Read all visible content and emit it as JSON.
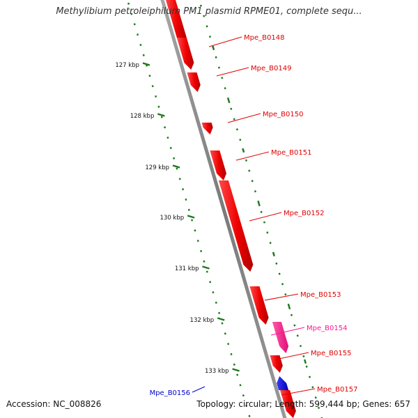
{
  "title": "Methylibium petroleiphilum PM1 plasmid RPME01, complete sequ...",
  "footer": {
    "accession": "Accession: NC_008826",
    "summary": "Topology: circular; Length: 599,444 bp; Genes: 657"
  },
  "scale_labels": [
    "127 kbp",
    "128 kbp",
    "129 kbp",
    "130 kbp",
    "131 kbp",
    "132 kbp",
    "133 kbp"
  ],
  "genes": [
    {
      "name": "Mpe_B0148",
      "strand": "+",
      "color": "#e00000"
    },
    {
      "name": "Mpe_B0149",
      "strand": "+",
      "color": "#e00000"
    },
    {
      "name": "Mpe_B0150",
      "strand": "+",
      "color": "#e00000"
    },
    {
      "name": "Mpe_B0151",
      "strand": "+",
      "color": "#e00000"
    },
    {
      "name": "Mpe_B0152",
      "strand": "+",
      "color": "#e00000"
    },
    {
      "name": "Mpe_B0153",
      "strand": "+",
      "color": "#e00000"
    },
    {
      "name": "Mpe_B0154",
      "strand": "+",
      "color": "#ff1493"
    },
    {
      "name": "Mpe_B0155",
      "strand": "+",
      "color": "#e00000"
    },
    {
      "name": "Mpe_B0156",
      "strand": "-",
      "color": "#0000cc"
    },
    {
      "name": "Mpe_B0157",
      "strand": "+",
      "color": "#e00000"
    }
  ],
  "colors": {
    "backbone": "#8c8c8c",
    "scale_ticks": "#1a7a1a",
    "forward_gene": "#e00000",
    "reverse_gene": "#0000cc",
    "rna_gene": "#ff1493"
  }
}
